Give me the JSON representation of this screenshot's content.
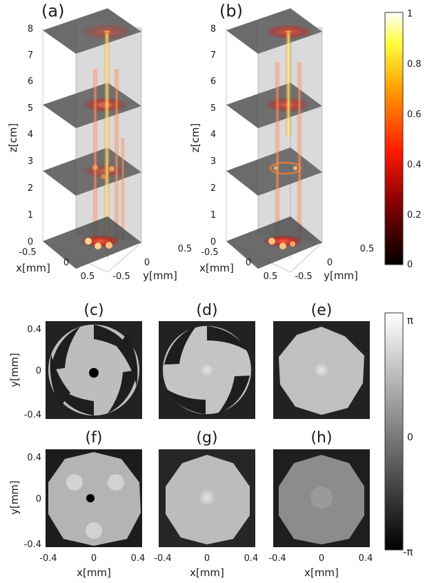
{
  "panels_3d": [
    {
      "label": "(a)",
      "z_label": "z[cm]",
      "x_label": "x[mm]",
      "y_label": "y[mm]",
      "z_ticks": [
        "0",
        "1",
        "2",
        "3",
        "4",
        "5",
        "6",
        "7",
        "8"
      ],
      "x_ticks": [
        "-0.5",
        "0",
        "0.5"
      ],
      "y_ticks": [
        "-0.5",
        "0",
        "0.5"
      ]
    },
    {
      "label": "(b)",
      "z_label": "z[cm]",
      "x_label": "x[mm]",
      "y_label": "y[mm]",
      "z_ticks": [
        "0",
        "1",
        "2",
        "3",
        "4",
        "5",
        "6",
        "7",
        "8"
      ],
      "x_ticks": [
        "-0.5",
        "0",
        "0.5"
      ],
      "y_ticks": [
        "-0.5",
        "0",
        "0.5"
      ]
    }
  ],
  "intensity_colorbar": {
    "ticks": [
      "0",
      "0.2",
      "0.4",
      "0.6",
      "0.8",
      "1"
    ]
  },
  "phase_panels": [
    {
      "label": "(c)"
    },
    {
      "label": "(d)"
    },
    {
      "label": "(e)"
    },
    {
      "label": "(f)"
    },
    {
      "label": "(g)"
    },
    {
      "label": "(h)"
    }
  ],
  "phase_axes": {
    "y_label": "y[mm]",
    "x_label": "x[mm]",
    "y_ticks": [
      "0.4",
      "0",
      "-0.4"
    ],
    "x_ticks": [
      "-0.4",
      "0",
      "0.4"
    ]
  },
  "phase_colorbar": {
    "ticks": [
      "π",
      "0",
      "-π"
    ]
  },
  "colors": {
    "hot_high": "#ffffff",
    "hot_mid": "#ff3000",
    "hot_low": "#000000",
    "slice_gray": "#555555"
  }
}
